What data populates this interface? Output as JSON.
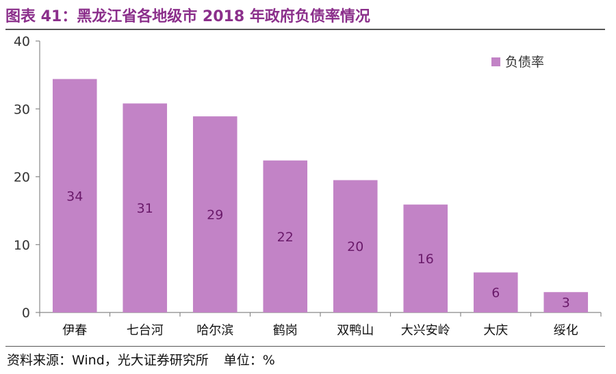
{
  "title": "图表 41：黑龙江省各地级市 2018 年政府负债率情况",
  "footer": {
    "source": "资料来源：Wind，光大证券研究所",
    "unit": "单位：%"
  },
  "colors": {
    "bar": "#c283c6",
    "title": "#8b2f8b",
    "data_label": "#6a1a6a",
    "axis": "#888888"
  },
  "chart_data": {
    "type": "bar",
    "title": "黑龙江省各地级市 2018 年政府负债率情况",
    "xlabel": "",
    "ylabel": "",
    "categories": [
      "伊春",
      "七台河",
      "哈尔滨",
      "鹤岗",
      "双鸭山",
      "大兴安岭",
      "大庆",
      "绥化"
    ],
    "values": [
      34.4,
      30.8,
      28.9,
      22.4,
      19.5,
      15.9,
      5.9,
      3.0
    ],
    "data_labels": [
      "34",
      "31",
      "29",
      "22",
      "20",
      "16",
      "6",
      "3"
    ],
    "series": [
      {
        "name": "负债率",
        "values": [
          34.4,
          30.8,
          28.9,
          22.4,
          19.5,
          15.9,
          5.9,
          3.0
        ]
      }
    ],
    "ylim": [
      0,
      40
    ],
    "yticks": [
      0,
      10,
      20,
      30,
      40
    ],
    "grid": false,
    "legend": {
      "entries": [
        "负债率"
      ],
      "position": "top-right"
    }
  }
}
